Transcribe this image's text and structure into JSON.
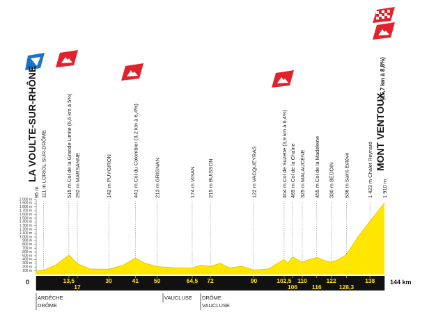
{
  "chart_data": {
    "type": "area",
    "color": "#ffe600",
    "xlim": [
      0,
      144
    ],
    "ylim": [
      0,
      2000
    ],
    "x": [
      0,
      3,
      8,
      13.5,
      17,
      22,
      30,
      36,
      41,
      45,
      50,
      57,
      64.5,
      68,
      72,
      76,
      80,
      85,
      90,
      96,
      102.5,
      104,
      106,
      108,
      110,
      113,
      116,
      119,
      122,
      125,
      128.3,
      133,
      138,
      144
    ],
    "values": [
      95,
      111,
      250,
      515,
      292,
      150,
      142,
      250,
      441,
      300,
      213,
      180,
      174,
      250,
      215,
      300,
      180,
      220,
      122,
      150,
      404,
      300,
      469,
      400,
      325,
      400,
      455,
      380,
      330,
      400,
      536,
      1000,
      1423,
      1910
    ],
    "yticks": [
      {
        "value": 100,
        "label": "100 m"
      },
      {
        "value": 200,
        "label": "200 m"
      },
      {
        "value": 300,
        "label": "300 m"
      },
      {
        "value": 400,
        "label": "400 m"
      },
      {
        "value": 500,
        "label": "500 m"
      },
      {
        "value": 600,
        "label": "600 m"
      },
      {
        "value": 700,
        "label": "700 m"
      },
      {
        "value": 800,
        "label": "800 m"
      },
      {
        "value": 900,
        "label": "900 m"
      },
      {
        "value": 1000,
        "label": "1 000 m"
      },
      {
        "value": 1100,
        "label": "1 100 m"
      },
      {
        "value": 1200,
        "label": "1 200 m"
      },
      {
        "value": 1300,
        "label": "1 300 m"
      },
      {
        "value": 1400,
        "label": "1 400 m"
      },
      {
        "value": 1500,
        "label": "1 500 m"
      },
      {
        "value": 1600,
        "label": "1 600 m"
      },
      {
        "value": 1700,
        "label": "1 700 m"
      },
      {
        "value": 1800,
        "label": "1 800 m"
      },
      {
        "value": 1900,
        "label": "1 900 m"
      },
      {
        "value": 2000,
        "label": "2 000 m"
      }
    ],
    "xticks": [
      0,
      {
        "value": 13.5,
        "label": "13,5"
      },
      17,
      30,
      41,
      50,
      {
        "value": 64.5,
        "label": "64,5"
      },
      72,
      90,
      {
        "value": 102.5,
        "label": "102,5"
      },
      106,
      110,
      116,
      122,
      {
        "value": 128.3,
        "label": "128,3"
      },
      138,
      {
        "value": 144,
        "label": "144 km"
      }
    ],
    "start": {
      "altitude": "95 m",
      "name": "LA VOULTE-SUR-RHÔNE"
    },
    "finish": {
      "altitude": "1 910 m",
      "name": "MONT VENTOUX",
      "climb": "(15,7 km à 8,8%)"
    },
    "waypoints": [
      {
        "km": 3,
        "label": "111 m LORIOL-SUR-DRÔME"
      },
      {
        "km": 13.5,
        "label": "515 m Col de la Grande Limite (6,6 km à 5%)"
      },
      {
        "km": 17,
        "label": "292 m MARSANNE"
      },
      {
        "km": 30,
        "label": "142 m PUYGIRON"
      },
      {
        "km": 41,
        "label": "441 m Col du Colombier (3,2 km à 6,4%)"
      },
      {
        "km": 50,
        "label": "213 m GRIGNAN"
      },
      {
        "km": 64.5,
        "label": "174 m VISAN"
      },
      {
        "km": 72,
        "label": "215 m BUISSON"
      },
      {
        "km": 90,
        "label": "122 m VACQUEYRAS"
      },
      {
        "km": 102.5,
        "label": "404 m Col de Suzette (3,9 km à 6,4%)"
      },
      {
        "km": 106,
        "label": "469 m Col de la Chaîne"
      },
      {
        "km": 110,
        "label": "325 m MALAUCÈNE"
      },
      {
        "km": 116,
        "label": "455 m Col de la Madeleine"
      },
      {
        "km": 122,
        "label": "330 m BÉDOIN"
      },
      {
        "km": 128.3,
        "label": "536 m Saint-Estève"
      },
      {
        "km": 138,
        "label": "1 423 m Chalet Reynard"
      }
    ],
    "regions": [
      [
        "ARDÈCHE",
        "DRÔME"
      ],
      [
        "VAUCLUSE"
      ],
      [
        "DRÔME",
        "VAUCLUSE"
      ]
    ]
  }
}
